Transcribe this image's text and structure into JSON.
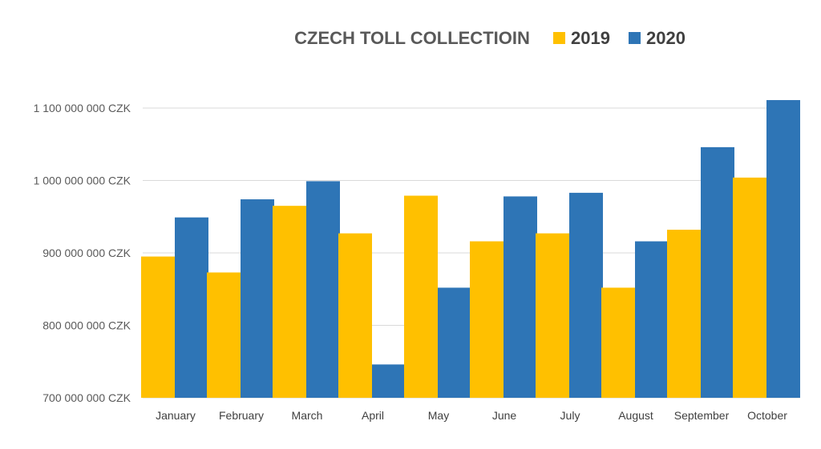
{
  "chart_data": {
    "type": "bar",
    "title": "CZECH TOLL COLLECTIOIN",
    "xlabel": "",
    "ylabel": "",
    "categories": [
      "January",
      "February",
      "March",
      "April",
      "May",
      "June",
      "July",
      "August",
      "September",
      "October"
    ],
    "series": [
      {
        "name": "2019",
        "color": "#FFC000",
        "values": [
          895000000,
          873000000,
          965000000,
          927000000,
          979000000,
          916000000,
          927000000,
          852000000,
          932000000,
          1004000000
        ]
      },
      {
        "name": "2020",
        "color": "#2E75B6",
        "values": [
          949000000,
          974000000,
          999000000,
          746000000,
          852000000,
          978000000,
          983000000,
          916000000,
          1046000000,
          1111000000
        ]
      }
    ],
    "ylim": [
      700000000,
      1100000000
    ],
    "yticks": [
      700000000,
      800000000,
      900000000,
      1000000000,
      1100000000
    ],
    "ytick_labels": [
      "700 000 000 CZK",
      "800 000 000 CZK",
      "900 000 000 CZK",
      "1 000 000 000 CZK",
      "1 100 000 000 CZK"
    ],
    "grid": true,
    "legend_position": "top"
  }
}
